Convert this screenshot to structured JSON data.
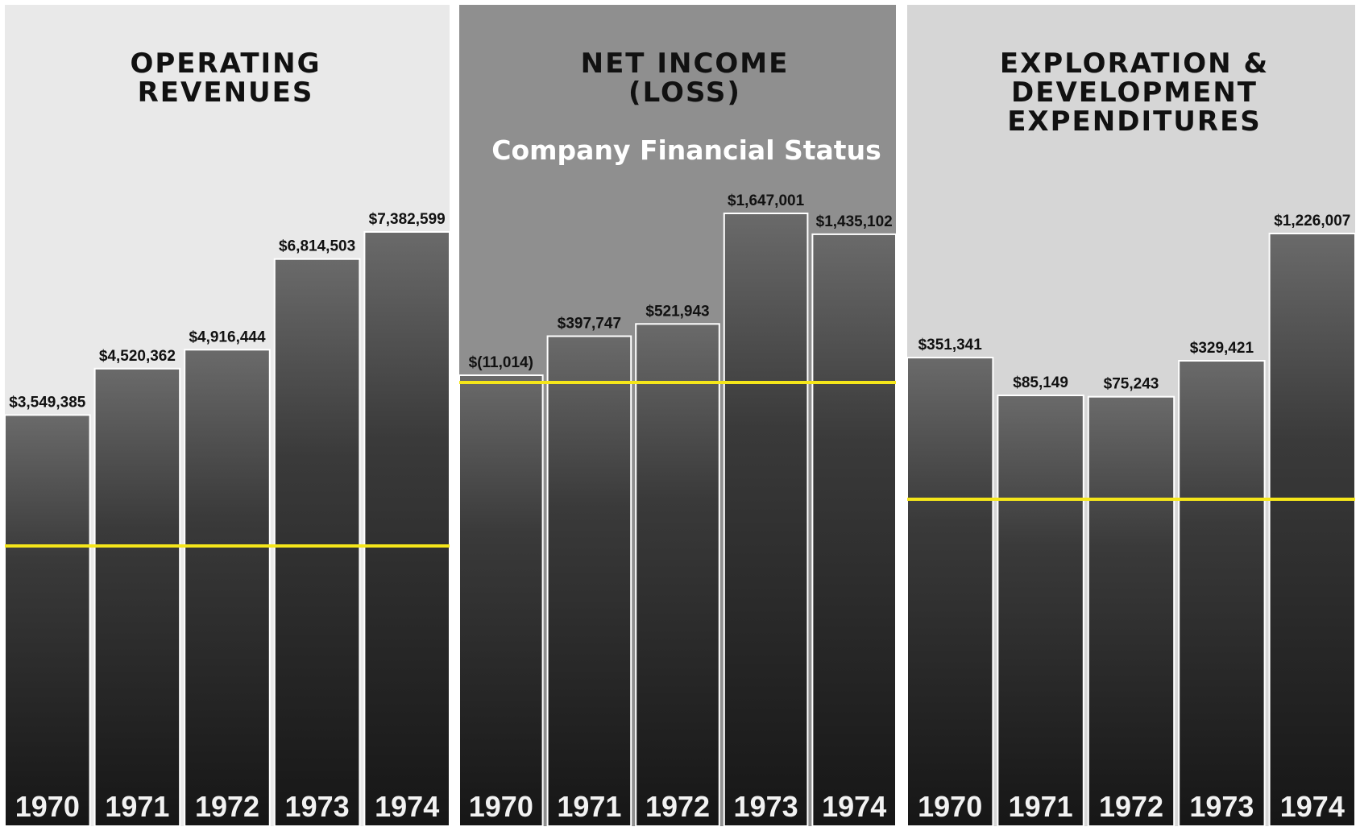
{
  "overlay_title": "Company Financial Status",
  "colors": {
    "page": "#ffffff",
    "panel_light": "#e8e8e8",
    "panel_mid": "#8e8e8e",
    "panel_light_right": "#d4d4d4",
    "bar_dark": "#222222",
    "reference_line": "#f5e61a"
  },
  "chart_data": [
    {
      "type": "bar",
      "title": "OPERATING REVENUES",
      "categories": [
        "1970",
        "1971",
        "1972",
        "1973",
        "1974"
      ],
      "values": [
        3549385,
        4520362,
        4916444,
        6814503,
        7382599
      ],
      "value_labels": [
        "$3,549,385",
        "$4,520,362",
        "$4,916,444",
        "$6,814,503",
        "$7,382,599"
      ],
      "reference_line": true
    },
    {
      "type": "bar",
      "title": "NET INCOME (LOSS)",
      "categories": [
        "1970",
        "1971",
        "1972",
        "1973",
        "1974"
      ],
      "values": [
        -11014,
        397747,
        521943,
        1647001,
        1435102
      ],
      "value_labels": [
        "$(11,014)",
        "$397,747",
        "$521,943",
        "$1,647,001",
        "$1,435,102"
      ],
      "reference_line": true
    },
    {
      "type": "bar",
      "title": "EXPLORATION & DEVELOPMENT EXPENDITURES",
      "categories": [
        "1970",
        "1971",
        "1972",
        "1973",
        "1974"
      ],
      "values": [
        351341,
        85149,
        75243,
        329421,
        1226007
      ],
      "value_labels": [
        "$351,341",
        "$85,149",
        "$75,243",
        "$329,421",
        "$1,226,007"
      ],
      "reference_line": true
    }
  ]
}
